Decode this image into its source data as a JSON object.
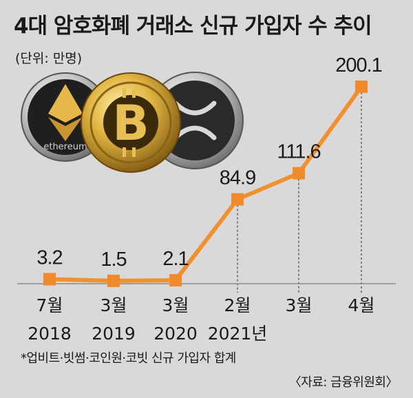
{
  "title": "4대 암호화폐 거래소 신규 가입자 수 추이",
  "unit": "(단위: 만명)",
  "note": "*업비트·빗썸·코인원·코빗 신규 가입자 합계",
  "source": "〈자료: 금융위원회〉",
  "coins": {
    "ethereum_label": "ethereum",
    "bitcoin_icon": "bitcoin-coin-icon",
    "ripple_icon": "ripple-coin-icon"
  },
  "colors": {
    "line": "#f0902e",
    "marker": "#f08a2a",
    "background": "#d9d9d9",
    "text": "#1a1a1a"
  },
  "chart_data": {
    "type": "line",
    "categories": [
      "7월\n2018",
      "3월\n2019",
      "3월\n2020",
      "2월\n2021년",
      "3월",
      "4월"
    ],
    "x_month": [
      "7월",
      "3월",
      "3월",
      "2월",
      "3월",
      "4월"
    ],
    "x_year": [
      "2018",
      "2019",
      "2020",
      "2021년",
      "",
      ""
    ],
    "values": [
      3.2,
      1.5,
      2.1,
      84.9,
      111.6,
      200.1
    ],
    "value_labels": [
      "3.2",
      "1.5",
      "2.1",
      "84.9",
      "111.6",
      "200.1"
    ],
    "title": "4대 암호화폐 거래소 신규 가입자 수 추이",
    "ylabel": "",
    "xlabel": "",
    "ylim": [
      0,
      200.1
    ],
    "grid": false,
    "legend": "none"
  }
}
